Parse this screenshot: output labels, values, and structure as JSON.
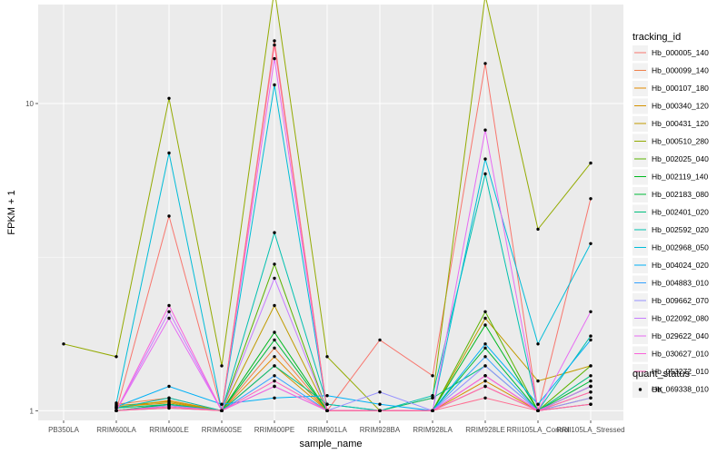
{
  "chart_data": {
    "type": "line",
    "xlabel": "sample_name",
    "ylabel": "FPKM + 1",
    "y_scale": "log10",
    "ylim": [
      0.93,
      21
    ],
    "y_ticks": [
      1,
      10
    ],
    "y_tick_labels": [
      "1",
      "10"
    ],
    "grid": true,
    "legend_position": "right",
    "categories": [
      "PB350LA",
      "RRIM600LA",
      "RRIM600LE",
      "RRIM600SE",
      "RRIM600PE",
      "RRIM901LA",
      "RRIM928BA",
      "RRIM928LA",
      "RRIM928LE",
      "RRII105LA_Control",
      "RRII105LA_Stressed"
    ],
    "series_legend_title": "tracking_id",
    "series": [
      {
        "name": "Hb_000005_140",
        "color": "#F8766D",
        "values": [
          null,
          1.0,
          4.3,
          1.0,
          16.0,
          1.0,
          1.7,
          1.3,
          13.5,
          1.0,
          4.9
        ]
      },
      {
        "name": "Hb_000099_140",
        "color": "#EF7F49",
        "values": [
          null,
          1.05,
          1.1,
          1.0,
          1.6,
          1.0,
          1.0,
          1.0,
          1.3,
          1.0,
          1.2
        ]
      },
      {
        "name": "Hb_000107_180",
        "color": "#E38900",
        "values": [
          null,
          1.02,
          1.08,
          1.0,
          1.5,
          1.0,
          1.0,
          1.0,
          1.2,
          1.0,
          1.15
        ]
      },
      {
        "name": "Hb_000340_120",
        "color": "#D39200",
        "values": [
          null,
          1.03,
          1.06,
          1.0,
          1.4,
          1.0,
          1.0,
          1.0,
          1.25,
          1.0,
          1.1
        ]
      },
      {
        "name": "Hb_000431_120",
        "color": "#C09B00",
        "values": [
          null,
          1.04,
          1.07,
          1.0,
          2.2,
          1.0,
          1.0,
          1.0,
          2.0,
          1.25,
          1.4
        ]
      },
      {
        "name": "Hb_000510_280",
        "color": "#93AA00",
        "values": [
          1.65,
          1.5,
          10.4,
          1.4,
          23.5,
          1.5,
          1.0,
          1.1,
          22.5,
          3.9,
          6.4
        ]
      },
      {
        "name": "Hb_002025_040",
        "color": "#5BB300",
        "values": [
          null,
          1.0,
          1.05,
          1.0,
          3.0,
          1.0,
          1.0,
          1.0,
          2.1,
          1.0,
          1.4
        ]
      },
      {
        "name": "Hb_002119_140",
        "color": "#00B81F",
        "values": [
          null,
          1.0,
          1.04,
          1.0,
          1.8,
          1.0,
          1.0,
          1.0,
          1.9,
          1.0,
          1.2
        ]
      },
      {
        "name": "Hb_002183_080",
        "color": "#00BA38",
        "values": [
          null,
          1.0,
          1.05,
          1.0,
          1.7,
          1.0,
          1.0,
          1.0,
          1.6,
          1.0,
          1.25
        ]
      },
      {
        "name": "Hb_002401_020",
        "color": "#00BF7D",
        "values": [
          null,
          1.02,
          1.05,
          1.0,
          1.4,
          1.05,
          1.0,
          1.1,
          1.4,
          1.0,
          1.3
        ]
      },
      {
        "name": "Hb_002592_020",
        "color": "#00C0AF",
        "values": [
          null,
          1.02,
          1.1,
          1.0,
          3.8,
          1.05,
          1.0,
          1.12,
          5.9,
          1.0,
          1.75
        ]
      },
      {
        "name": "Hb_002968_050",
        "color": "#00BCD8",
        "values": [
          null,
          1.06,
          6.9,
          1.0,
          11.5,
          1.0,
          1.0,
          1.0,
          6.6,
          1.65,
          3.5
        ]
      },
      {
        "name": "Hb_004024_020",
        "color": "#00B0F6",
        "values": [
          null,
          1.03,
          1.2,
          1.05,
          1.1,
          1.12,
          1.05,
          1.0,
          1.65,
          1.05,
          1.7
        ]
      },
      {
        "name": "Hb_004883_010",
        "color": "#35A2FF",
        "values": [
          null,
          1.0,
          1.02,
          1.0,
          1.3,
          1.0,
          1.0,
          1.0,
          1.5,
          1.0,
          1.05
        ]
      },
      {
        "name": "Hb_009662_070",
        "color": "#9590FF",
        "values": [
          null,
          1.0,
          1.04,
          1.0,
          1.2,
          1.0,
          1.15,
          1.0,
          1.4,
          1.0,
          1.1
        ]
      },
      {
        "name": "Hb_022092_080",
        "color": "#C77CFF",
        "values": [
          null,
          1.0,
          2.1,
          1.0,
          2.7,
          1.0,
          1.0,
          1.0,
          1.3,
          1.0,
          1.2
        ]
      },
      {
        "name": "Hb_029622_040",
        "color": "#E76BF3",
        "values": [
          null,
          1.0,
          2.0,
          1.0,
          14.0,
          1.0,
          1.0,
          1.0,
          8.2,
          1.0,
          2.1
        ]
      },
      {
        "name": "Hb_030627_010",
        "color": "#FA62DB",
        "values": [
          null,
          1.0,
          2.2,
          1.0,
          1.2,
          1.0,
          1.0,
          1.0,
          1.3,
          1.0,
          1.05
        ]
      },
      {
        "name": "Hb_053272_010",
        "color": "#FF62BC",
        "values": [
          null,
          1.0,
          1.03,
          1.0,
          1.25,
          1.0,
          1.0,
          1.0,
          1.2,
          1.0,
          1.15
        ]
      },
      {
        "name": "Hb_069338_010",
        "color": "#FF6C91",
        "values": [
          null,
          1.0,
          1.02,
          1.0,
          15.5,
          1.0,
          1.0,
          1.0,
          1.1,
          1.0,
          1.05
        ]
      }
    ],
    "point_legend_title": "quant_status",
    "point_legend_items": [
      "OK"
    ],
    "panel_color": "#ebebeb",
    "grid_color": "#ffffff"
  }
}
